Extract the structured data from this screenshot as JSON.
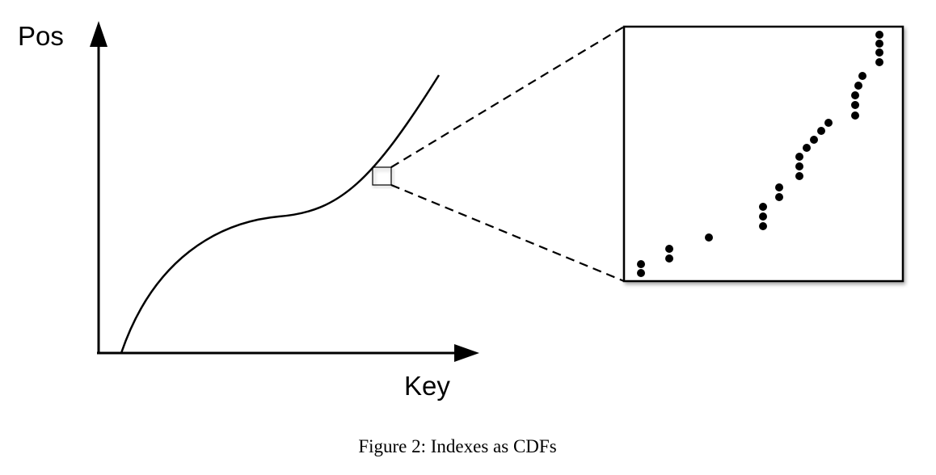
{
  "axes": {
    "y_label": "Pos",
    "x_label": "Key"
  },
  "caption": "Figure 2: Indexes as CDFs"
}
